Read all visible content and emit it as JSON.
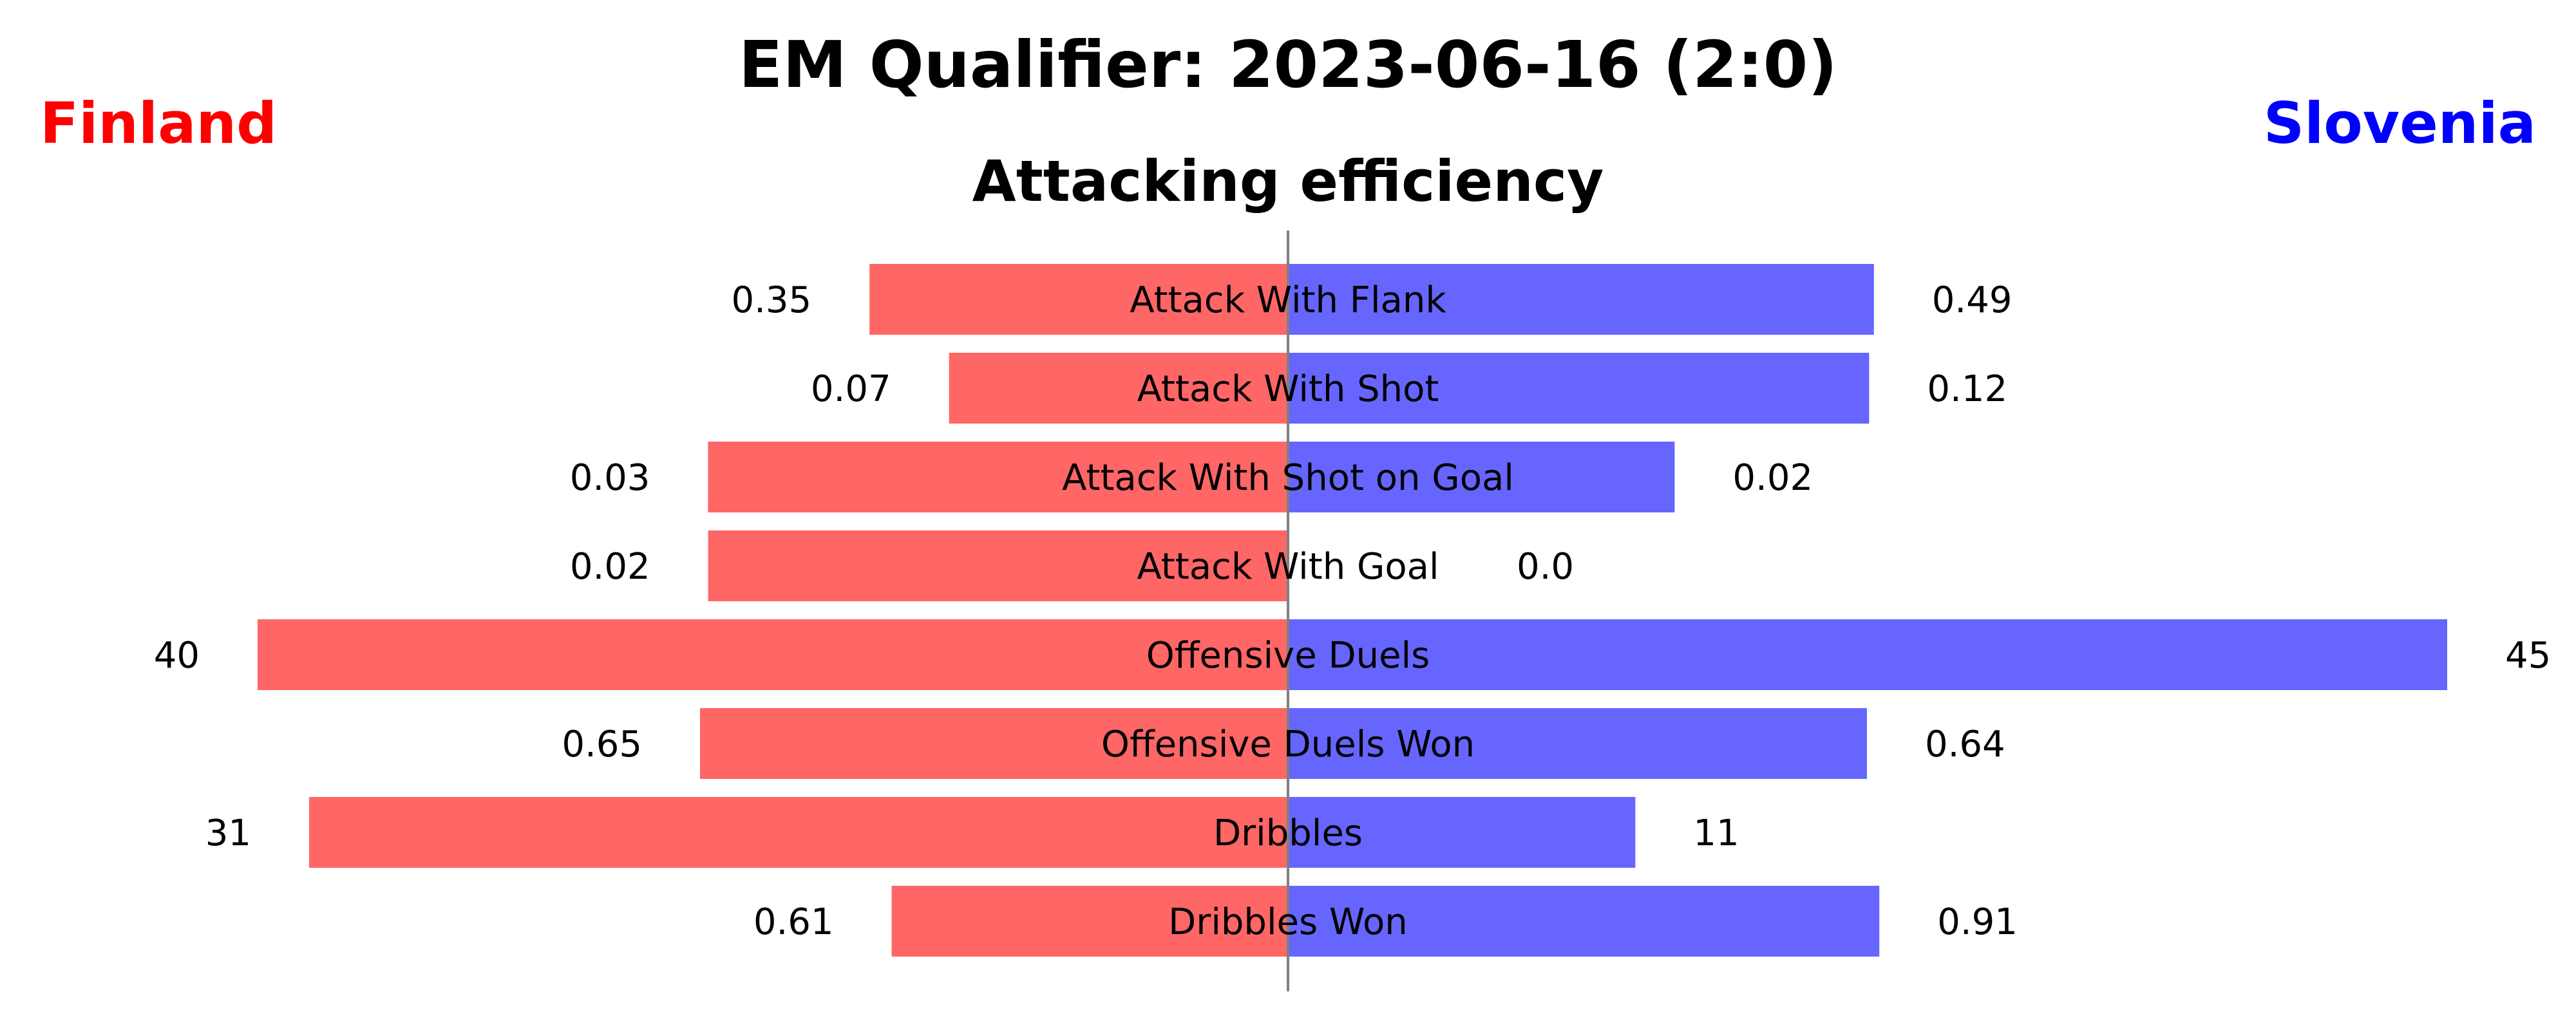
{
  "chart_data": {
    "type": "bar",
    "orientation": "diverging-horizontal",
    "title": "EM Qualifier: 2023-06-16 (2:0)",
    "subtitle": "Attacking efficiency",
    "categories": [
      "Attack With Flank",
      "Attack With Shot",
      "Attack With Shot on Goal",
      "Attack With Goal",
      "Offensive Duels",
      "Offensive Duels Won",
      "Dribbles",
      "Dribbles Won"
    ],
    "series": [
      {
        "name": "Finland",
        "side": "left",
        "color": "#ff6666",
        "values": [
          0.35,
          0.07,
          0.03,
          0.02,
          40,
          0.65,
          31,
          0.61
        ],
        "labels": [
          "0.35",
          "0.07",
          "0.03",
          "0.02",
          "40",
          "0.65",
          "31",
          "0.61"
        ]
      },
      {
        "name": "Slovenia",
        "side": "right",
        "color": "#6666ff",
        "values": [
          0.49,
          0.12,
          0.02,
          0.0,
          45,
          0.64,
          11,
          0.91
        ],
        "labels": [
          "0.49",
          "0.12",
          "0.02",
          "0.0",
          "45",
          "0.64",
          "11",
          "0.91"
        ]
      }
    ],
    "team_colors": {
      "Finland": "#ff0000",
      "Slovenia": "#0000ff"
    },
    "row_normalization": "per-row share of a common maximum",
    "grid": false,
    "center_line": true,
    "center_line_color": "#808080"
  }
}
